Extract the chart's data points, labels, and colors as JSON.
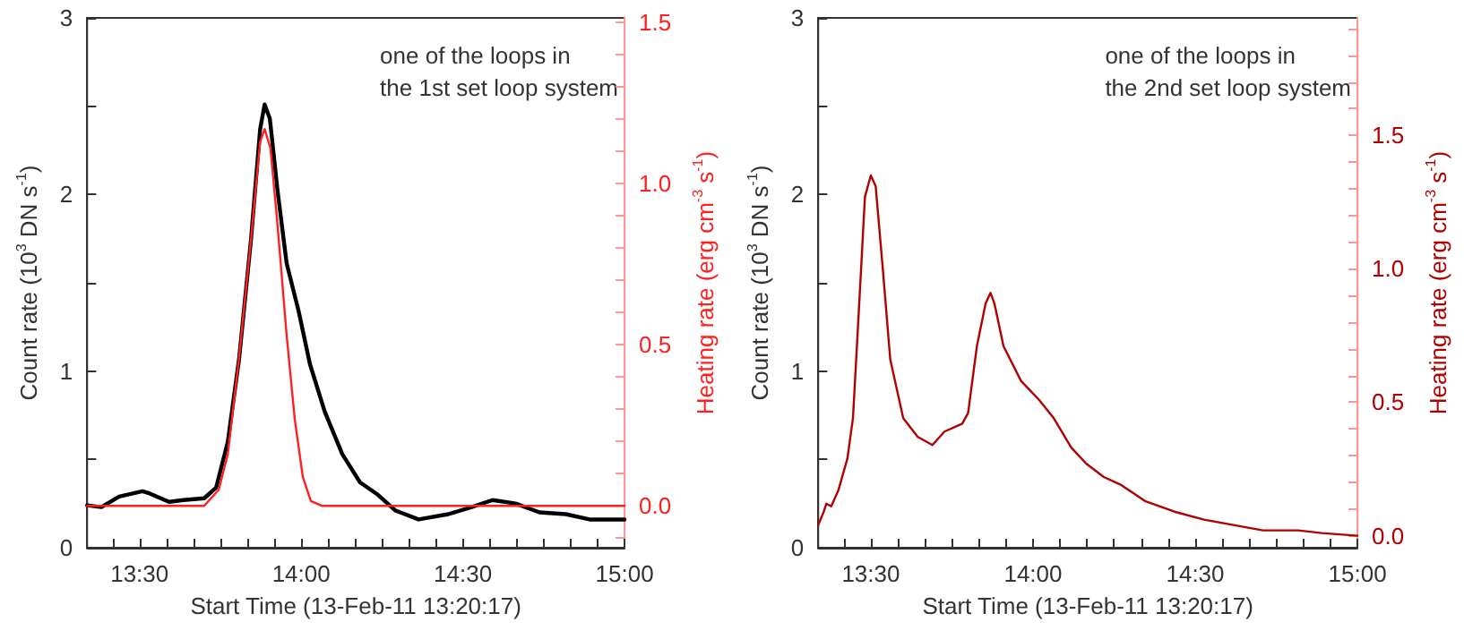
{
  "chart_data": [
    {
      "type": "line",
      "xlabel": "Start Time (13-Feb-11 13:20:17)",
      "ylabel": "Count rate (10$^{3}$ DN s$^{-1}$)",
      "y2label": "Heating rate (erg cm$^{-3}$ s$^{-1}$)",
      "annotations": [
        "one of the loops in\nthe 1st set loop system"
      ],
      "xlim": [
        13.338,
        15.0
      ],
      "xticks": [
        {
          "value": 13.4167,
          "label": null
        },
        {
          "value": 13.5,
          "label": "13:30"
        },
        {
          "value": 13.5833,
          "label": null
        },
        {
          "value": 13.6667,
          "label": null
        },
        {
          "value": 13.75,
          "label": null
        },
        {
          "value": 13.8333,
          "label": null
        },
        {
          "value": 13.9167,
          "label": null
        },
        {
          "value": 14,
          "label": "14:00"
        },
        {
          "value": 14.0833,
          "label": null
        },
        {
          "value": 14.1667,
          "label": null
        },
        {
          "value": 14.25,
          "label": null
        },
        {
          "value": 14.3333,
          "label": null
        },
        {
          "value": 14.4167,
          "label": null
        },
        {
          "value": 14.5,
          "label": "14:30"
        },
        {
          "value": 14.5833,
          "label": null
        },
        {
          "value": 14.6667,
          "label": null
        },
        {
          "value": 14.75,
          "label": null
        },
        {
          "value": 14.8333,
          "label": null
        },
        {
          "value": 14.9167,
          "label": null
        },
        {
          "value": 15,
          "label": "15:00"
        }
      ],
      "ylim": [
        0,
        3
      ],
      "yticks": [
        0,
        {
          "value": 0.5,
          "label": null
        },
        1,
        {
          "value": 1.5,
          "label": null
        },
        2,
        {
          "value": 2.5,
          "label": null
        },
        3
      ],
      "y2lim": [
        -0.13,
        1.515
      ],
      "y2ticks": [
        {
          "value": -0.1,
          "label": null
        },
        {
          "value": 0,
          "label": "0.0"
        },
        {
          "value": 0.1,
          "label": null
        },
        {
          "value": 0.2,
          "label": null
        },
        {
          "value": 0.3,
          "label": null
        },
        {
          "value": 0.4,
          "label": null
        },
        {
          "value": 0.5,
          "label": "0.5"
        },
        {
          "value": 0.6,
          "label": null
        },
        {
          "value": 0.7,
          "label": null
        },
        {
          "value": 0.8,
          "label": null
        },
        {
          "value": 0.9,
          "label": null
        },
        {
          "value": 1.0,
          "label": "1.0"
        },
        {
          "value": 1.1,
          "label": null
        },
        {
          "value": 1.2,
          "label": null
        },
        {
          "value": 1.3,
          "label": null
        },
        {
          "value": 1.4,
          "label": null
        },
        {
          "value": 1.5,
          "label": "1.5"
        }
      ],
      "grid": false,
      "marker": "none",
      "line_style": "solid",
      "series": [
        {
          "color": "#000000",
          "x": [
            13.338,
            13.382,
            13.437,
            13.509,
            13.527,
            13.591,
            13.636,
            13.7,
            13.737,
            13.773,
            13.808,
            13.845,
            13.873,
            13.887,
            13.903,
            13.927,
            13.955,
            13.992,
            14.027,
            14.073,
            14.127,
            14.182,
            14.237,
            14.292,
            14.363,
            14.455,
            14.527,
            14.592,
            14.663,
            14.737,
            14.818,
            14.892,
            15.0
          ],
          "values": [
            0.24,
            0.23,
            0.29,
            0.32,
            0.31,
            0.26,
            0.27,
            0.28,
            0.34,
            0.6,
            1.07,
            1.75,
            2.37,
            2.51,
            2.43,
            2.02,
            1.61,
            1.34,
            1.04,
            0.77,
            0.53,
            0.37,
            0.3,
            0.21,
            0.16,
            0.19,
            0.23,
            0.27,
            0.25,
            0.2,
            0.19,
            0.16,
            0.16
          ]
        },
        {
          "color": "#ff2020",
          "axis": "y2",
          "x": [
            13.338,
            13.7,
            13.745,
            13.773,
            13.808,
            13.845,
            13.873,
            13.887,
            13.905,
            13.927,
            13.955,
            13.98,
            14.005,
            14.03,
            14.064,
            15.0
          ],
          "values": [
            0,
            0,
            0.05,
            0.16,
            0.46,
            0.83,
            1.13,
            1.17,
            1.11,
            0.87,
            0.53,
            0.27,
            0.09,
            0.015,
            0,
            0
          ]
        }
      ]
    },
    {
      "type": "line",
      "xlabel": "Start Time (13-Feb-11 13:20:17)",
      "ylabel": "Count rate (10$^{3}$ DN s$^{-1}$)",
      "y2label": "Heating rate (erg cm$^{-3}$ s$^{-1}$)",
      "annotations": [
        "one of the loops in\nthe 2nd set loop system"
      ],
      "xlim": [
        13.338,
        15.0
      ],
      "xticks": [
        {
          "value": 13.4167,
          "label": null
        },
        {
          "value": 13.5,
          "label": "13:30"
        },
        {
          "value": 13.5833,
          "label": null
        },
        {
          "value": 13.6667,
          "label": null
        },
        {
          "value": 13.75,
          "label": null
        },
        {
          "value": 13.8333,
          "label": null
        },
        {
          "value": 13.9167,
          "label": null
        },
        {
          "value": 14,
          "label": "14:00"
        },
        {
          "value": 14.0833,
          "label": null
        },
        {
          "value": 14.1667,
          "label": null
        },
        {
          "value": 14.25,
          "label": null
        },
        {
          "value": 14.3333,
          "label": null
        },
        {
          "value": 14.4167,
          "label": null
        },
        {
          "value": 14.5,
          "label": "14:30"
        },
        {
          "value": 14.5833,
          "label": null
        },
        {
          "value": 14.6667,
          "label": null
        },
        {
          "value": 14.75,
          "label": null
        },
        {
          "value": 14.8333,
          "label": null
        },
        {
          "value": 14.9167,
          "label": null
        },
        {
          "value": 15,
          "label": "15:00"
        }
      ],
      "ylim": [
        0,
        3
      ],
      "yticks": [
        0,
        {
          "value": 0.5,
          "label": null
        },
        1,
        {
          "value": 1.5,
          "label": null
        },
        2,
        {
          "value": 2.5,
          "label": null
        },
        3
      ],
      "y2lim": [
        -0.045,
        1.94
      ],
      "y2ticks": [
        {
          "value": 0,
          "label": "0.0"
        },
        {
          "value": 0.1,
          "label": null
        },
        {
          "value": 0.2,
          "label": null
        },
        {
          "value": 0.3,
          "label": null
        },
        {
          "value": 0.4,
          "label": null
        },
        {
          "value": 0.5,
          "label": "0.5"
        },
        {
          "value": 0.6,
          "label": null
        },
        {
          "value": 0.7,
          "label": null
        },
        {
          "value": 0.8,
          "label": null
        },
        {
          "value": 0.9,
          "label": null
        },
        {
          "value": 1.0,
          "label": "1.0"
        },
        {
          "value": 1.1,
          "label": null
        },
        {
          "value": 1.2,
          "label": null
        },
        {
          "value": 1.3,
          "label": null
        },
        {
          "value": 1.4,
          "label": null
        },
        {
          "value": 1.5,
          "label": "1.5"
        },
        {
          "value": 1.6,
          "label": null
        },
        {
          "value": 1.7,
          "label": null
        },
        {
          "value": 1.8,
          "label": null
        },
        {
          "value": 1.9,
          "label": null
        }
      ],
      "grid": false,
      "marker": "none",
      "line_style": "solid",
      "series": [
        {
          "color": "#b00000",
          "axis": "y2",
          "x": [
            13.338,
            13.355,
            13.363,
            13.378,
            13.4,
            13.428,
            13.445,
            13.463,
            13.482,
            13.5,
            13.515,
            13.537,
            13.56,
            13.6,
            13.645,
            13.69,
            13.727,
            13.782,
            13.8,
            13.827,
            13.854,
            13.869,
            13.881,
            13.909,
            13.963,
            14.018,
            14.064,
            14.118,
            14.164,
            14.218,
            14.272,
            14.345,
            14.436,
            14.527,
            14.618,
            14.709,
            14.817,
            14.89,
            15.0
          ],
          "values": [
            0.04,
            0.09,
            0.12,
            0.11,
            0.17,
            0.29,
            0.44,
            0.84,
            1.27,
            1.35,
            1.31,
            1.0,
            0.66,
            0.44,
            0.37,
            0.34,
            0.39,
            0.42,
            0.46,
            0.71,
            0.87,
            0.91,
            0.87,
            0.71,
            0.58,
            0.51,
            0.44,
            0.33,
            0.27,
            0.22,
            0.19,
            0.13,
            0.09,
            0.06,
            0.04,
            0.02,
            0.02,
            0.01,
            0.0
          ]
        }
      ]
    }
  ]
}
